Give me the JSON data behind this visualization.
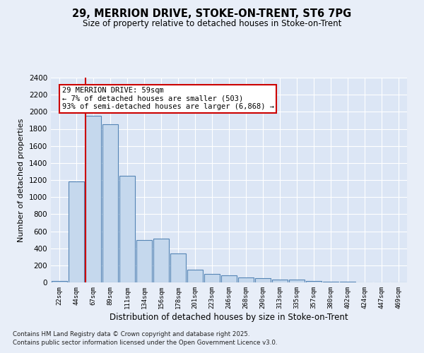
{
  "title1": "29, MERRION DRIVE, STOKE-ON-TRENT, ST6 7PG",
  "title2": "Size of property relative to detached houses in Stoke-on-Trent",
  "xlabel": "Distribution of detached houses by size in Stoke-on-Trent",
  "ylabel": "Number of detached properties",
  "categories": [
    "22sqm",
    "44sqm",
    "67sqm",
    "89sqm",
    "111sqm",
    "134sqm",
    "156sqm",
    "178sqm",
    "201sqm",
    "223sqm",
    "246sqm",
    "268sqm",
    "290sqm",
    "313sqm",
    "335sqm",
    "357sqm",
    "380sqm",
    "402sqm",
    "424sqm",
    "447sqm",
    "469sqm"
  ],
  "values": [
    20,
    1180,
    1950,
    1850,
    1250,
    500,
    510,
    340,
    145,
    100,
    85,
    60,
    50,
    30,
    30,
    20,
    10,
    5,
    2,
    2,
    1
  ],
  "bar_color": "#c5d8ed",
  "bar_edge_color": "#5585b5",
  "vline_color": "#cc0000",
  "bg_color": "#dce6f5",
  "fig_color": "#e8eef8",
  "annotation_text": "29 MERRION DRIVE: 59sqm\n← 7% of detached houses are smaller (503)\n93% of semi-detached houses are larger (6,868) →",
  "annotation_box_color": "#ffffff",
  "annotation_box_edge": "#cc0000",
  "footer1": "Contains HM Land Registry data © Crown copyright and database right 2025.",
  "footer2": "Contains public sector information licensed under the Open Government Licence v3.0.",
  "ylim": [
    0,
    2400
  ],
  "yticks": [
    0,
    200,
    400,
    600,
    800,
    1000,
    1200,
    1400,
    1600,
    1800,
    2000,
    2200,
    2400
  ]
}
